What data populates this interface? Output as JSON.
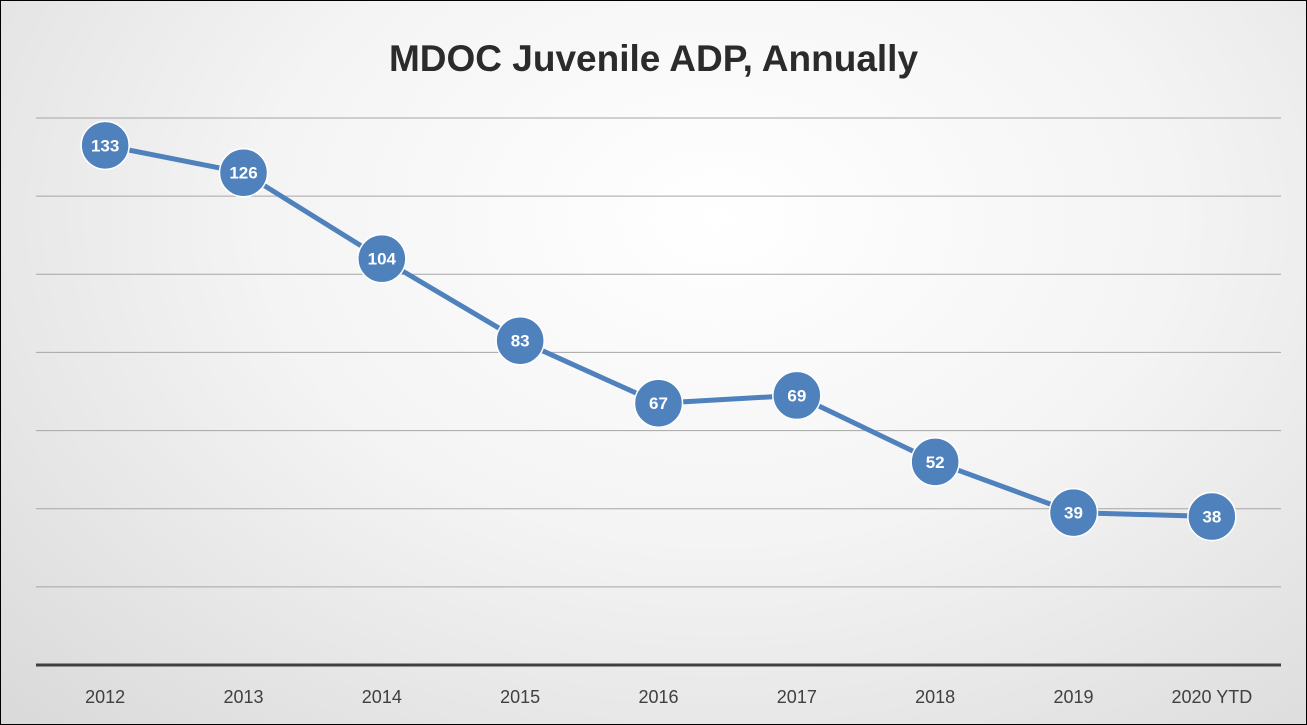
{
  "chart_data": {
    "type": "line",
    "title": "MDOC Juvenile ADP, Annually",
    "categories": [
      "2012",
      "2013",
      "2014",
      "2015",
      "2016",
      "2017",
      "2018",
      "2019",
      "2020 YTD"
    ],
    "series": [
      {
        "values": [
          133,
          126,
          104,
          83,
          67,
          69,
          52,
          39,
          38
        ]
      }
    ],
    "data_labels": [
      "133",
      "126",
      "104",
      "83",
      "67",
      "69",
      "52",
      "39",
      "38"
    ],
    "ylim": [
      0,
      140
    ],
    "y_gridline_step": 20,
    "grid": true,
    "y_axis_labels_shown": false,
    "legend": "none",
    "colors": {
      "line": "#4f81bd",
      "marker_border": "#ffffff",
      "gridline": "#a6a6a6",
      "baseline": "#404040",
      "label_text": "#ffffff"
    }
  }
}
